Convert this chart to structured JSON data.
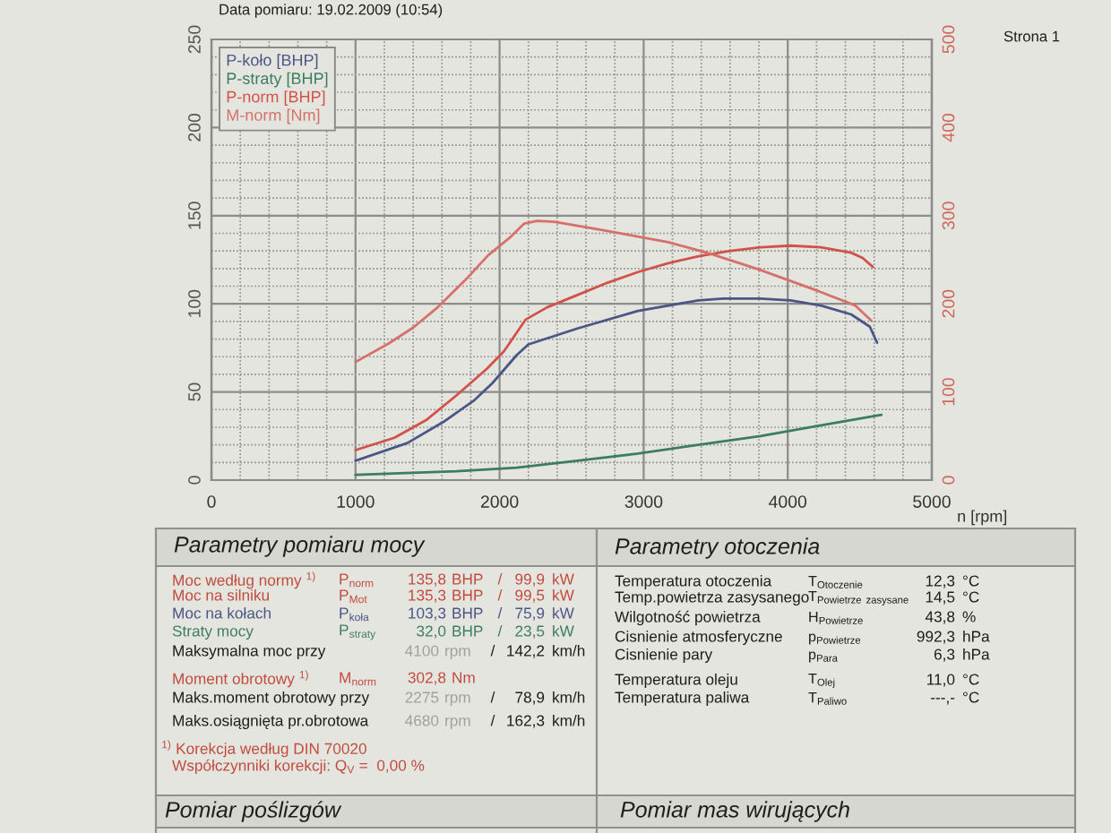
{
  "chart_data": {
    "type": "line",
    "xlabel": "n [rpm]",
    "xlim": [
      0,
      5000
    ],
    "xticks": [
      0,
      {
        "value": 200,
        "label": null
      },
      {
        "value": 400,
        "label": null
      },
      {
        "value": 600,
        "label": null
      },
      {
        "value": 800,
        "label": null
      },
      1000,
      {
        "value": 1200,
        "label": null
      },
      {
        "value": 1400,
        "label": null
      },
      {
        "value": 1600,
        "label": null
      },
      {
        "value": 1800,
        "label": null
      },
      2000,
      {
        "value": 2200,
        "label": null
      },
      {
        "value": 2400,
        "label": null
      },
      {
        "value": 2600,
        "label": null
      },
      {
        "value": 2800,
        "label": null
      },
      3000,
      {
        "value": 3200,
        "label": null
      },
      {
        "value": 3400,
        "label": null
      },
      {
        "value": 3600,
        "label": null
      },
      {
        "value": 3800,
        "label": null
      },
      4000,
      {
        "value": 4200,
        "label": null
      },
      {
        "value": 4400,
        "label": null
      },
      {
        "value": 4600,
        "label": null
      },
      {
        "value": 4800,
        "label": null
      },
      5000
    ],
    "ylim": [
      0,
      250
    ],
    "yticks": [
      0,
      {
        "value": 10,
        "label": null
      },
      {
        "value": 20,
        "label": null
      },
      {
        "value": 30,
        "label": null
      },
      {
        "value": 40,
        "label": null
      },
      50,
      {
        "value": 60,
        "label": null
      },
      {
        "value": 70,
        "label": null
      },
      {
        "value": 80,
        "label": null
      },
      {
        "value": 90,
        "label": null
      },
      100,
      {
        "value": 110,
        "label": null
      },
      {
        "value": 120,
        "label": null
      },
      {
        "value": 130,
        "label": null
      },
      {
        "value": 140,
        "label": null
      },
      150,
      {
        "value": 160,
        "label": null
      },
      {
        "value": 170,
        "label": null
      },
      {
        "value": 180,
        "label": null
      },
      {
        "value": 190,
        "label": null
      },
      200,
      {
        "value": 210,
        "label": null
      },
      {
        "value": 220,
        "label": null
      },
      {
        "value": 230,
        "label": null
      },
      {
        "value": 240,
        "label": null
      },
      250
    ],
    "y2lim": [
      0,
      500
    ],
    "y2ticks": [
      0,
      100,
      200,
      300,
      400,
      500
    ],
    "grid": true,
    "legend": "top left",
    "series": [
      {
        "name": "P-koło [BHP]",
        "color": "#4b5686",
        "x": [
          1000,
          1360,
          1610,
          1820,
          1950,
          2120,
          2200,
          2540,
          2960,
          3380,
          3550,
          3810,
          4020,
          4230,
          4440,
          4570,
          4620
        ],
        "values": [
          11,
          21,
          33,
          45,
          55,
          71,
          77,
          86,
          96,
          102,
          103,
          103,
          102,
          99,
          94,
          87,
          78
        ]
      },
      {
        "name": "P-straty [BHP]",
        "color": "#3b7d62",
        "x": [
          1000,
          1700,
          2120,
          2540,
          2960,
          3380,
          3810,
          4230,
          4650
        ],
        "values": [
          3,
          5,
          7,
          11,
          15,
          20,
          25,
          31,
          37
        ]
      },
      {
        "name": "P-norm [BHP]",
        "color": "#d2524a",
        "x": [
          1000,
          1270,
          1490,
          1700,
          1910,
          2030,
          2180,
          2330,
          2540,
          2750,
          2960,
          3170,
          3380,
          3600,
          3810,
          4020,
          4230,
          4440,
          4520,
          4590
        ],
        "values": [
          17,
          24,
          34,
          48,
          63,
          73,
          91,
          98,
          105,
          112,
          118,
          123,
          127,
          130,
          132,
          133,
          132,
          129,
          126,
          121
        ]
      },
      {
        "name": "M-norm [Nm]",
        "color": "#d8706a",
        "axis": "y2",
        "x": [
          1000,
          1230,
          1400,
          1570,
          1780,
          1920,
          2070,
          2170,
          2260,
          2380,
          2740,
          3170,
          3460,
          3800,
          4220,
          4470,
          4580
        ],
        "values": [
          134,
          155,
          173,
          196,
          230,
          255,
          275,
          291,
          294,
          293,
          283,
          270,
          257,
          239,
          214,
          198,
          181
        ]
      }
    ],
    "annotations": [
      "Data pomiaru: 19.02.2009 (10:54)",
      "Strona 1",
      "Parametry pomiaru mocy",
      "Parametry otoczenia",
      "Moc według normy $^{1)}$",
      "P$_{norm}$",
      "135,8",
      "BHP",
      "/",
      "99,9",
      "kW",
      "Moc na silniku",
      "P$_{Mot}$",
      "135,3",
      "BHP",
      "/",
      "99,5",
      "kW",
      "Moc na kołach",
      "P$_{koła}$",
      "103,3",
      "BHP",
      "/",
      "75,9",
      "kW",
      "Straty mocy",
      "P$_{straty}$",
      "32,0",
      "BHP",
      "/",
      "23,5",
      "kW",
      "Maksymalna moc przy",
      "4100",
      "rpm",
      "/",
      "142,2",
      "km/h",
      "Moment obrotowy $^{1)}$",
      "M$_{norm}$",
      "302,8",
      "Nm",
      "Maks.moment obrotowy przy",
      "2275",
      "rpm",
      "/",
      "78,9",
      "km/h",
      "Maks.osiągnięta pr.obrotowa",
      "4680",
      "rpm",
      "/",
      "162,3",
      "km/h",
      "$^{1)}$ Korekcja według DIN 70020",
      "Współczynniki korekcji: Q$_{V}$ =  0,00 %",
      "Temperatura otoczenia",
      "T$_{Otoczenie}$",
      "12,3",
      "°C",
      "Temp.powietrza zasysanego",
      "T$_{Powietrze}$ $_{zasysane}$",
      "14,5",
      "°C",
      "Wilgotność powietrza",
      "H$_{Powietrze}$",
      "43,8",
      "%",
      "Cisnienie atmosferyczne",
      "p$_{Powietrze}$",
      "992,3",
      "hPa",
      "Cisnienie pary",
      "p$_{Para}$",
      "6,3",
      "hPa",
      "Temperatura oleju",
      "T$_{Olej}$",
      "11,0",
      "°C",
      "Temperatura paliwa",
      "T$_{Paliwo}$",
      "---,-",
      "°C",
      "Pomiar poślizgów",
      "Pomiar mas wirujących"
    ]
  }
}
